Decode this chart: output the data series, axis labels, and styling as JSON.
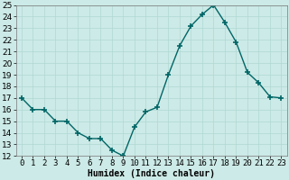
{
  "xlabel": "Humidex (Indice chaleur)",
  "x": [
    0,
    1,
    2,
    3,
    4,
    5,
    6,
    7,
    8,
    9,
    10,
    11,
    12,
    13,
    14,
    15,
    16,
    17,
    18,
    19,
    20,
    21,
    22,
    23
  ],
  "y": [
    17,
    16,
    16,
    15,
    15,
    14,
    13.5,
    13.5,
    12.5,
    12,
    14.5,
    15.8,
    16.2,
    19,
    21.5,
    23.2,
    24.2,
    25,
    23.5,
    21.8,
    19.2,
    18.3,
    17.1,
    17
  ],
  "line_color": "#006666",
  "marker": "+",
  "marker_size": 4,
  "marker_linewidth": 1.2,
  "background_color": "#cceae7",
  "grid_color": "#b0d8d4",
  "ylim": [
    12,
    25
  ],
  "xlim": [
    -0.5,
    23.5
  ],
  "yticks": [
    12,
    13,
    14,
    15,
    16,
    17,
    18,
    19,
    20,
    21,
    22,
    23,
    24,
    25
  ],
  "xtick_labels": [
    "0",
    "1",
    "2",
    "3",
    "4",
    "5",
    "6",
    "7",
    "8",
    "9",
    "10",
    "11",
    "12",
    "13",
    "14",
    "15",
    "16",
    "17",
    "18",
    "19",
    "20",
    "21",
    "22",
    "23"
  ],
  "label_fontsize": 7,
  "tick_fontsize": 6.5,
  "linewidth": 1.0
}
